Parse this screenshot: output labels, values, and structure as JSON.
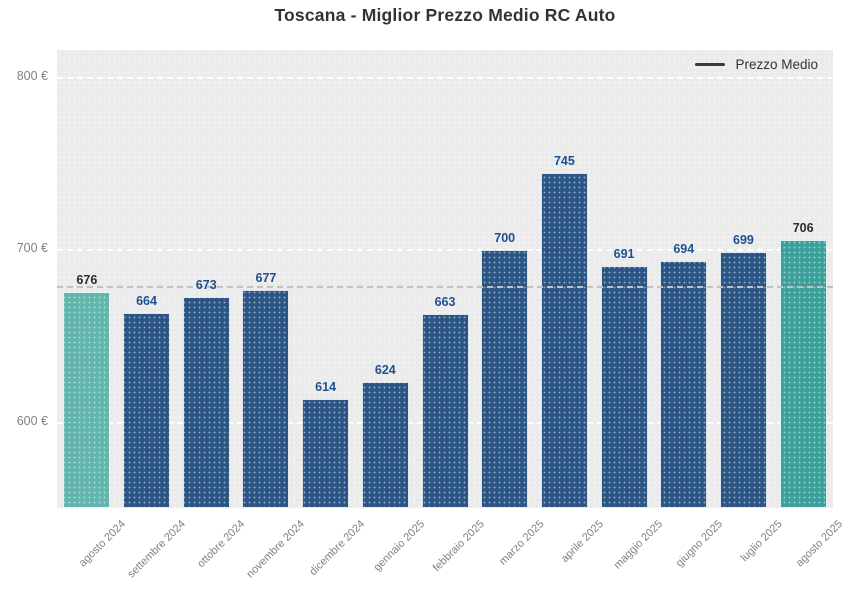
{
  "page": {
    "title": "Toscana - Miglior Prezzo Medio RC Auto"
  },
  "legend": {
    "label": "Prezzo Medio"
  },
  "chart_data": {
    "type": "bar",
    "title": "Toscana - Miglior Prezzo Medio RC Auto",
    "series_name": "Prezzo Medio",
    "categories": [
      "agosto 2024",
      "settembre 2024",
      "ottobre 2024",
      "novembre 2024",
      "dicembre 2024",
      "gennaio 2025",
      "febbraio 2025",
      "marzo 2025",
      "aprile 2025",
      "maggio 2025",
      "giugno 2025",
      "luglio 2025",
      "agosto 2025"
    ],
    "values": [
      676,
      664,
      673,
      677,
      614,
      624,
      663,
      700,
      745,
      691,
      694,
      699,
      706
    ],
    "unit": "€",
    "xlabel": "",
    "ylabel": "",
    "ylim": [
      551,
      816
    ],
    "y_ticks": [
      800,
      700,
      600
    ],
    "y_tick_labels": [
      "800 €",
      "700 €",
      "600 €"
    ],
    "average_line_value": 679,
    "grid": "horizontal white dashed gridlines behind bars",
    "legend_position": "top-right",
    "highlighted_bars": {
      "first_index": 0,
      "last_index": 12
    }
  },
  "colors": {
    "bar": "#2a5585",
    "bar_first": "#61b5ad",
    "bar_last": "#3ba19a",
    "value_label": "#1c5191",
    "value_label_highlight": "#2d2d2d",
    "plot_background": "#ebebeb",
    "gridline": "#ffffff",
    "average_line": "#c2c2c2",
    "axis_label": "#828282",
    "title": "#333333",
    "legend_line": "#3a3a3a",
    "legend_text": "#333333"
  }
}
